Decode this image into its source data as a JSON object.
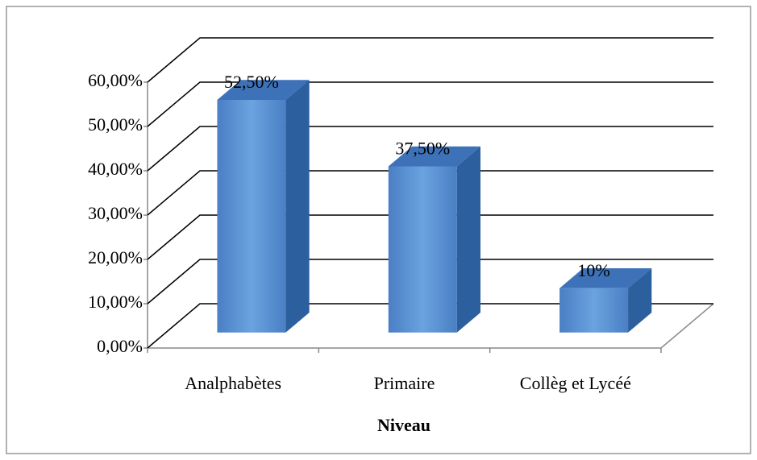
{
  "chart_data": {
    "type": "bar3d",
    "x_label": "Niveau",
    "categories": [
      "Analphabètes",
      "Primaire",
      "Collèg et Lycéé"
    ],
    "values": [
      52.5,
      37.5,
      10
    ],
    "value_labels": [
      "52,50%",
      "37,50%",
      "10%"
    ],
    "color": "#4f81bd",
    "ylim": [
      0,
      60
    ],
    "yticks": [
      {
        "value": 0,
        "label": "0,00%"
      },
      {
        "value": 10,
        "label": "10,00%"
      },
      {
        "value": 20,
        "label": "20,00%"
      },
      {
        "value": 30,
        "label": "30,00%"
      },
      {
        "value": 40,
        "label": "40,00%"
      },
      {
        "value": 50,
        "label": "50,00%"
      },
      {
        "value": 60,
        "label": "60,00%"
      }
    ],
    "grid": true
  }
}
